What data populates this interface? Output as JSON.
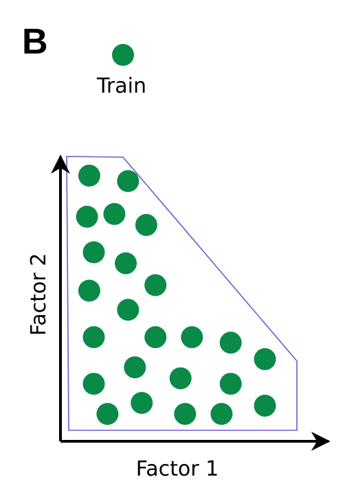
{
  "panel_label": "B",
  "legend": {
    "label": "Train",
    "marker_color": "#0a8a47"
  },
  "axes": {
    "x_label": "Factor 1",
    "y_label": "Factor 2",
    "axis_color": "#000000"
  },
  "hull": {
    "stroke_color": "#6a5acd"
  },
  "chart_data": {
    "type": "scatter",
    "title": "",
    "xlabel": "Factor 1",
    "ylabel": "Factor 2",
    "grid": false,
    "series": [
      {
        "name": "Train",
        "color": "#0a8a47",
        "x": [
          0.09,
          0.26,
          0.08,
          0.2,
          0.34,
          0.11,
          0.25,
          0.09,
          0.38,
          0.26,
          0.11,
          0.38,
          0.54,
          0.71,
          0.86,
          0.11,
          0.29,
          0.49,
          0.71,
          0.17,
          0.32,
          0.51,
          0.67,
          0.86
        ],
        "y": [
          0.93,
          0.91,
          0.78,
          0.79,
          0.75,
          0.65,
          0.61,
          0.51,
          0.53,
          0.44,
          0.34,
          0.34,
          0.34,
          0.32,
          0.26,
          0.17,
          0.23,
          0.19,
          0.17,
          0.06,
          0.1,
          0.06,
          0.06,
          0.09
        ]
      }
    ]
  }
}
